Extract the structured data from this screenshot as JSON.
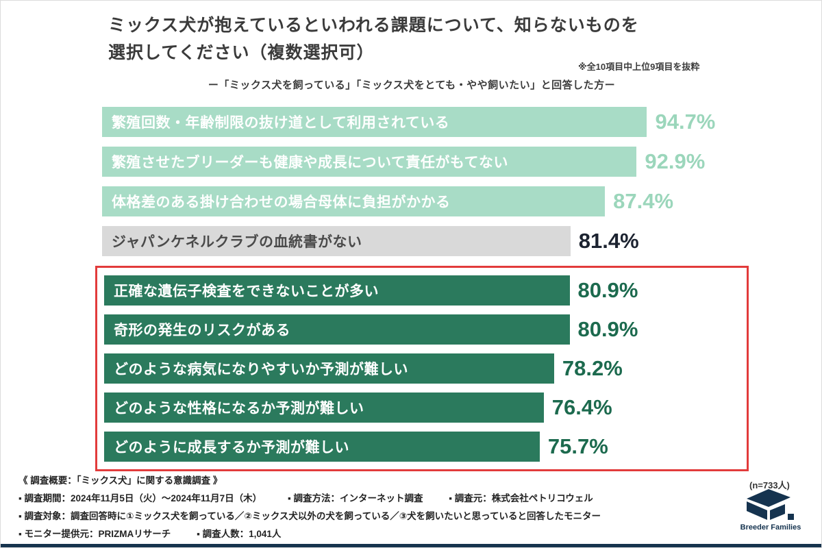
{
  "header": {
    "title_line1": "ミックス犬が抱えているといわれる課題について、知らないものを",
    "title_line2": "選択してください（複数選択可）",
    "note": "※全10項目中上位9項目を抜粋",
    "subtitle": "ー「ミックス犬を飼っている」「ミックス犬をとても・やや飼いたい」と回答した方ー"
  },
  "chart_data": {
    "type": "bar",
    "orientation": "horizontal",
    "title": "ミックス犬が抱えているといわれる課題について、知らないものを選択してください（複数選択可）",
    "unit": "%",
    "xlim": [
      0,
      100
    ],
    "categories": [
      "繁殖回数・年齢制限の抜け道として利用されている",
      "繁殖させたブリーダーも健康や成長について責任がもてない",
      "体格差のある掛け合わせの場合母体に負担がかかる",
      "ジャパンケネルクラブの血統書がない",
      "正確な遺伝子検査をできないことが多い",
      "奇形の発生のリスクがある",
      "どのような病気になりやすいか予測が難しい",
      "どのような性格になるか予測が難しい",
      "どのように成長するか予測が難しい"
    ],
    "values": [
      94.7,
      92.9,
      87.4,
      81.4,
      80.9,
      80.9,
      78.2,
      76.4,
      75.7
    ],
    "value_labels": [
      "94.7%",
      "92.9%",
      "87.4%",
      "81.4%",
      "80.9%",
      "80.9%",
      "78.2%",
      "76.4%",
      "75.7%"
    ],
    "bar_styles": [
      "mint",
      "mint",
      "mint",
      "gray",
      "dark",
      "dark",
      "dark",
      "dark",
      "dark"
    ],
    "colors": {
      "mint": "#a8dcc6",
      "gray": "#d9d9d9",
      "dark": "#2b7a5d",
      "highlight_box": "#e23b3b"
    },
    "highlight_box_rows": [
      4,
      8
    ],
    "legend": "none",
    "grid": "off"
  },
  "footer": {
    "heading": "《 調査概要：「ミックス犬」に関する意識調査 》",
    "row1": [
      "▪ 調査期間：2024年11月5日（火）〜2024年11月7日（木）",
      "▪ 調査方法：インターネット調査",
      "▪ 調査元：株式会社ペトリコウェル"
    ],
    "row2": [
      "▪ 調査対象：調査回答時に①ミックス犬を飼っている／②ミックス犬以外の犬を飼っている／③犬を飼いたいと思っていると回答したモニター"
    ],
    "row3": [
      "▪ モニター提供元：PRIZMAリサーチ",
      "▪ 調査人数：1,041人"
    ]
  },
  "branding": {
    "sample_size": "(n=733人)",
    "logo_text": "Breeder Families",
    "logo_color": "#15334f"
  }
}
